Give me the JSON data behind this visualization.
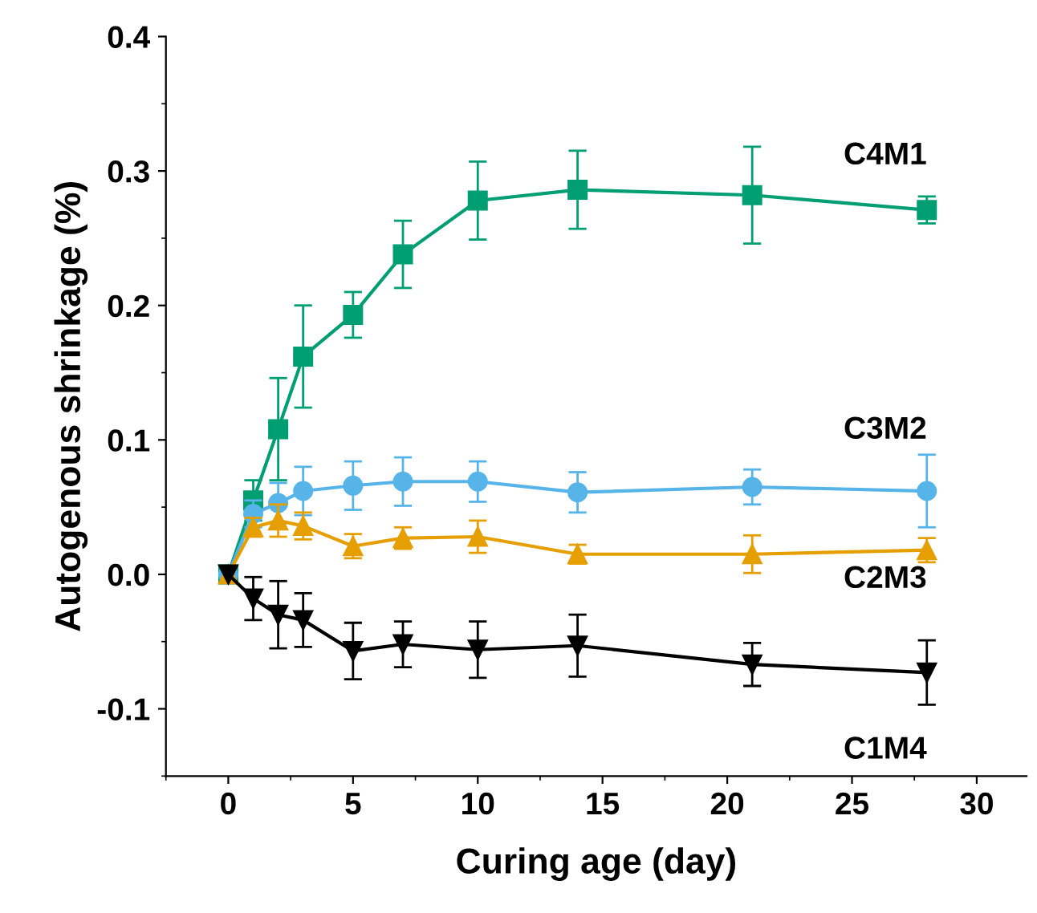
{
  "chart_data": {
    "type": "line",
    "xlabel": "Curing age (day)",
    "ylabel": "Autogenous shrinkage (%)",
    "x": [
      0,
      1,
      2,
      3,
      5,
      7,
      10,
      14,
      21,
      28
    ],
    "xlim": [
      -2.5,
      32
    ],
    "xticks": [
      0,
      5,
      10,
      15,
      20,
      25,
      30
    ],
    "ylim": [
      -0.15,
      0.4
    ],
    "yticks": [
      {
        "value": -0.1,
        "label": "-0.1"
      },
      {
        "value": 0.0,
        "label": "0.0"
      },
      0.1,
      0.2,
      0.3,
      0.4
    ],
    "grid": false,
    "legend": false,
    "line_style": "solid",
    "series": [
      {
        "name": "C4M1",
        "color": "#009e73",
        "marker": "square",
        "values": [
          0,
          0.055,
          0.108,
          0.162,
          0.193,
          0.238,
          0.278,
          0.286,
          0.282,
          0.271
        ],
        "errors": [
          null,
          0.015,
          0.038,
          0.038,
          0.017,
          0.025,
          0.029,
          0.029,
          0.036,
          0.01
        ]
      },
      {
        "name": "C3M2",
        "color": "#56b4e9",
        "marker": "circle",
        "values": [
          0,
          0.045,
          0.053,
          0.062,
          0.066,
          0.069,
          0.069,
          0.061,
          0.065,
          0.062
        ],
        "errors": [
          null,
          0.01,
          0.015,
          0.018,
          0.018,
          0.018,
          0.015,
          0.015,
          0.013,
          0.027
        ]
      },
      {
        "name": "C2M3",
        "color": "#e69f00",
        "marker": "triangle",
        "values": [
          0,
          0.035,
          0.04,
          0.036,
          0.021,
          0.027,
          0.028,
          0.015,
          0.015,
          0.018
        ],
        "errors": [
          null,
          0.007,
          0.012,
          0.01,
          0.009,
          0.008,
          0.012,
          0.007,
          0.014,
          0.009
        ]
      },
      {
        "name": "C1M4",
        "color": "#000000",
        "marker": "triangle_down",
        "values": [
          0,
          -0.018,
          -0.03,
          -0.034,
          -0.057,
          -0.052,
          -0.056,
          -0.053,
          -0.067,
          -0.073
        ],
        "errors": [
          null,
          0.016,
          0.025,
          0.02,
          0.021,
          0.017,
          0.021,
          0.023,
          0.016,
          0.024
        ]
      }
    ]
  }
}
